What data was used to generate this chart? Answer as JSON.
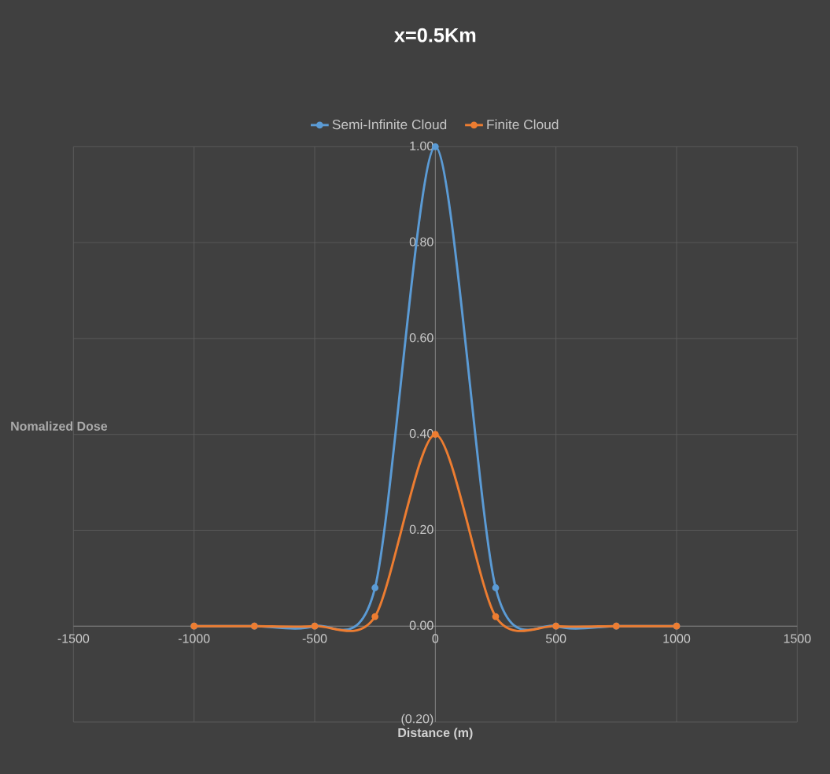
{
  "chart_data": {
    "type": "line",
    "title": "x=0.5Km",
    "xlabel": "Distance (m)",
    "ylabel": "Nomalized Dose",
    "x": [
      -1000,
      -750,
      -500,
      -250,
      0,
      250,
      500,
      750,
      1000
    ],
    "series": [
      {
        "name": "Semi-Infinite Cloud",
        "color": "#5b9bd5",
        "values": [
          0,
          0,
          0,
          0.08,
          1.0,
          0.08,
          0,
          0,
          0
        ]
      },
      {
        "name": "Finite Cloud",
        "color": "#ed7d31",
        "values": [
          0,
          0,
          0,
          0.02,
          0.4,
          0.02,
          0,
          0,
          0
        ]
      }
    ],
    "xlim": [
      -1500,
      1500
    ],
    "xticks": [
      -1500,
      -1000,
      -500,
      0,
      500,
      1000,
      1500
    ],
    "ylim": [
      -0.2,
      1.0
    ],
    "yticks": [
      {
        "value": -0.2,
        "label": "(0.20)"
      },
      {
        "value": 0,
        "label": "0.00"
      },
      {
        "value": 0.2,
        "label": "0.20"
      },
      {
        "value": 0.4,
        "label": "0.40"
      },
      {
        "value": 0.6,
        "label": "0.60"
      },
      {
        "value": 0.8,
        "label": "0.80"
      },
      {
        "value": 1.0,
        "label": "1.00"
      }
    ],
    "grid": true,
    "legend": "top",
    "marker": "circle",
    "line_style": "solid"
  }
}
